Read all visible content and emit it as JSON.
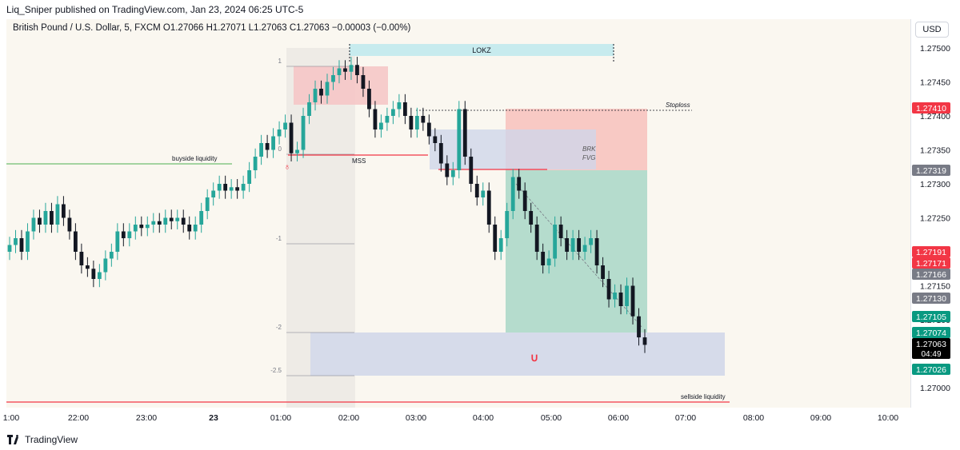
{
  "header": {
    "publisher_line": "Liq_Sniper published on TradingView.com, Jan 23, 2024 06:25 UTC-5"
  },
  "legend": {
    "symbol_line": "British Pound / U.S. Dollar, 5, FXCM  O1.27066  H1.27071  L1.27063  C1.27063  −0.00003 (−0.00%)"
  },
  "currency_button": "USD",
  "footer": {
    "brand": "TradingView"
  },
  "colors": {
    "up": "#26a69a",
    "down": "#131722",
    "bg": "#faf7f0",
    "red": "#f23645",
    "green": "#4caf50"
  },
  "chart_data": {
    "type": "candlestick",
    "symbol": "British Pound / U.S. Dollar",
    "interval": "5",
    "source": "FXCM",
    "ohlc_last": {
      "open": 1.27066,
      "high": 1.27071,
      "low": 1.27063,
      "close": 1.27063,
      "change": "−0.00003 (−0.00%)"
    },
    "ylim": [
      1.26975,
      1.27525
    ],
    "y_ticks": [
      "1.27500",
      "1.27450",
      "1.27400",
      "1.27350",
      "1.27300",
      "1.27250",
      "1.27200",
      "1.27150",
      "1.27100",
      "1.27050",
      "1.27000"
    ],
    "x_ticks": [
      "1:00",
      "22:00",
      "23:00",
      "23",
      "01:00",
      "02:00",
      "03:00",
      "04:00",
      "05:00",
      "06:00",
      "07:00",
      "08:00",
      "09:00",
      "10:00"
    ],
    "price_labels": [
      {
        "text": "1.27410",
        "color": "#f23645"
      },
      {
        "text": "1.27319",
        "color": "#787b86"
      },
      {
        "text": "1.27191",
        "color": "#f23645"
      },
      {
        "text": "1.27171",
        "color": "#f23645"
      },
      {
        "text": "1.27166",
        "color": "#787b86"
      },
      {
        "text": "1.27130",
        "color": "#787b86"
      },
      {
        "text": "1.27105",
        "color": "#089981"
      },
      {
        "text": "1.27074",
        "color": "#089981"
      },
      {
        "text": "1.27063",
        "sub": "04:49",
        "color": "#000000"
      },
      {
        "text": "1.27026",
        "color": "#089981"
      }
    ],
    "annotations": {
      "lokz": "LOKZ",
      "stoploss": "Stoploss",
      "brk": "BRK",
      "fvg": "FVG",
      "mss": "MSS",
      "buyside": "buyside liquidity",
      "sellside": "sellside liquidity",
      "fib_levels": [
        "1",
        "0",
        "-1",
        "-2",
        "-2.5"
      ]
    },
    "close_series": [
      1.2721,
      1.2722,
      1.272,
      1.2723,
      1.2725,
      1.2724,
      1.2726,
      1.2724,
      1.2727,
      1.2725,
      1.2723,
      1.272,
      1.2718,
      1.27175,
      1.2716,
      1.2717,
      1.2719,
      1.272,
      1.2723,
      1.2722,
      1.2723,
      1.2724,
      1.27235,
      1.2724,
      1.27245,
      1.2724,
      1.2725,
      1.27245,
      1.2725,
      1.2724,
      1.2723,
      1.2724,
      1.2726,
      1.2728,
      1.2729,
      1.273,
      1.2729,
      1.27295,
      1.2729,
      1.273,
      1.2732,
      1.2734,
      1.2736,
      1.2735,
      1.2737,
      1.2738,
      1.2739,
      1.27345,
      1.2735,
      1.274,
      1.2742,
      1.2744,
      1.2743,
      1.2745,
      1.2746,
      1.2747,
      1.27465,
      1.27475,
      1.2746,
      1.2744,
      1.2741,
      1.2738,
      1.2739,
      1.274,
      1.2741,
      1.2742,
      1.274,
      1.2738,
      1.274,
      1.2739,
      1.2737,
      1.2736,
      1.2733,
      1.2731,
      1.2732,
      1.2741,
      1.2734,
      1.273,
      1.2728,
      1.2729,
      1.2724,
      1.272,
      1.2722,
      1.2726,
      1.2731,
      1.2729,
      1.2726,
      1.2724,
      1.272,
      1.2718,
      1.2719,
      1.2724,
      1.2722,
      1.272,
      1.2722,
      1.272,
      1.2721,
      1.2722,
      1.2718,
      1.2716,
      1.2713,
      1.2714,
      1.2712,
      1.2715,
      1.27105,
      1.27074,
      1.27063
    ]
  }
}
